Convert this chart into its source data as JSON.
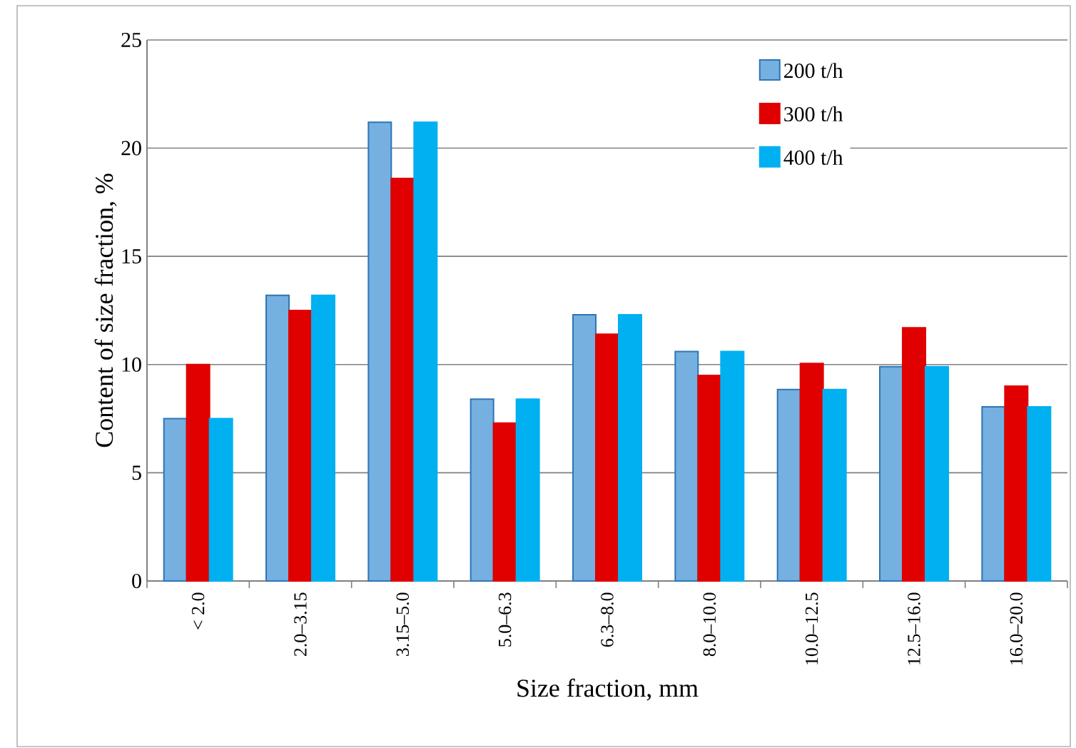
{
  "chart_data": {
    "type": "bar",
    "xlabel": "Size fraction, mm",
    "ylabel": "Content of size fraction, %",
    "categories": [
      "< 2.0",
      "2.0–3.15",
      "3.15–5.0",
      "5.0–6.3",
      "6.3–8.0",
      "8.0–10.0",
      "10.0–12.5",
      "12.5–16.0",
      "16.0–20.0"
    ],
    "series": [
      {
        "name": "200 t/h",
        "color": "#75b0e0",
        "values": [
          7.5,
          13.2,
          21.2,
          8.4,
          12.3,
          10.6,
          8.85,
          9.9,
          8.05
        ]
      },
      {
        "name": "300 t/h",
        "color": "#e00000",
        "values": [
          10.0,
          12.5,
          18.6,
          7.3,
          11.4,
          9.5,
          10.05,
          11.7,
          9.0
        ]
      },
      {
        "name": "400 t/h",
        "color": "#00b0f0",
        "values": [
          7.5,
          13.2,
          21.2,
          8.4,
          12.3,
          10.6,
          8.85,
          9.9,
          8.05
        ]
      }
    ],
    "ylim": [
      0,
      25
    ],
    "yticks": [
      0,
      5,
      10,
      15,
      20,
      25
    ],
    "grid": "y",
    "legend": "top right"
  }
}
